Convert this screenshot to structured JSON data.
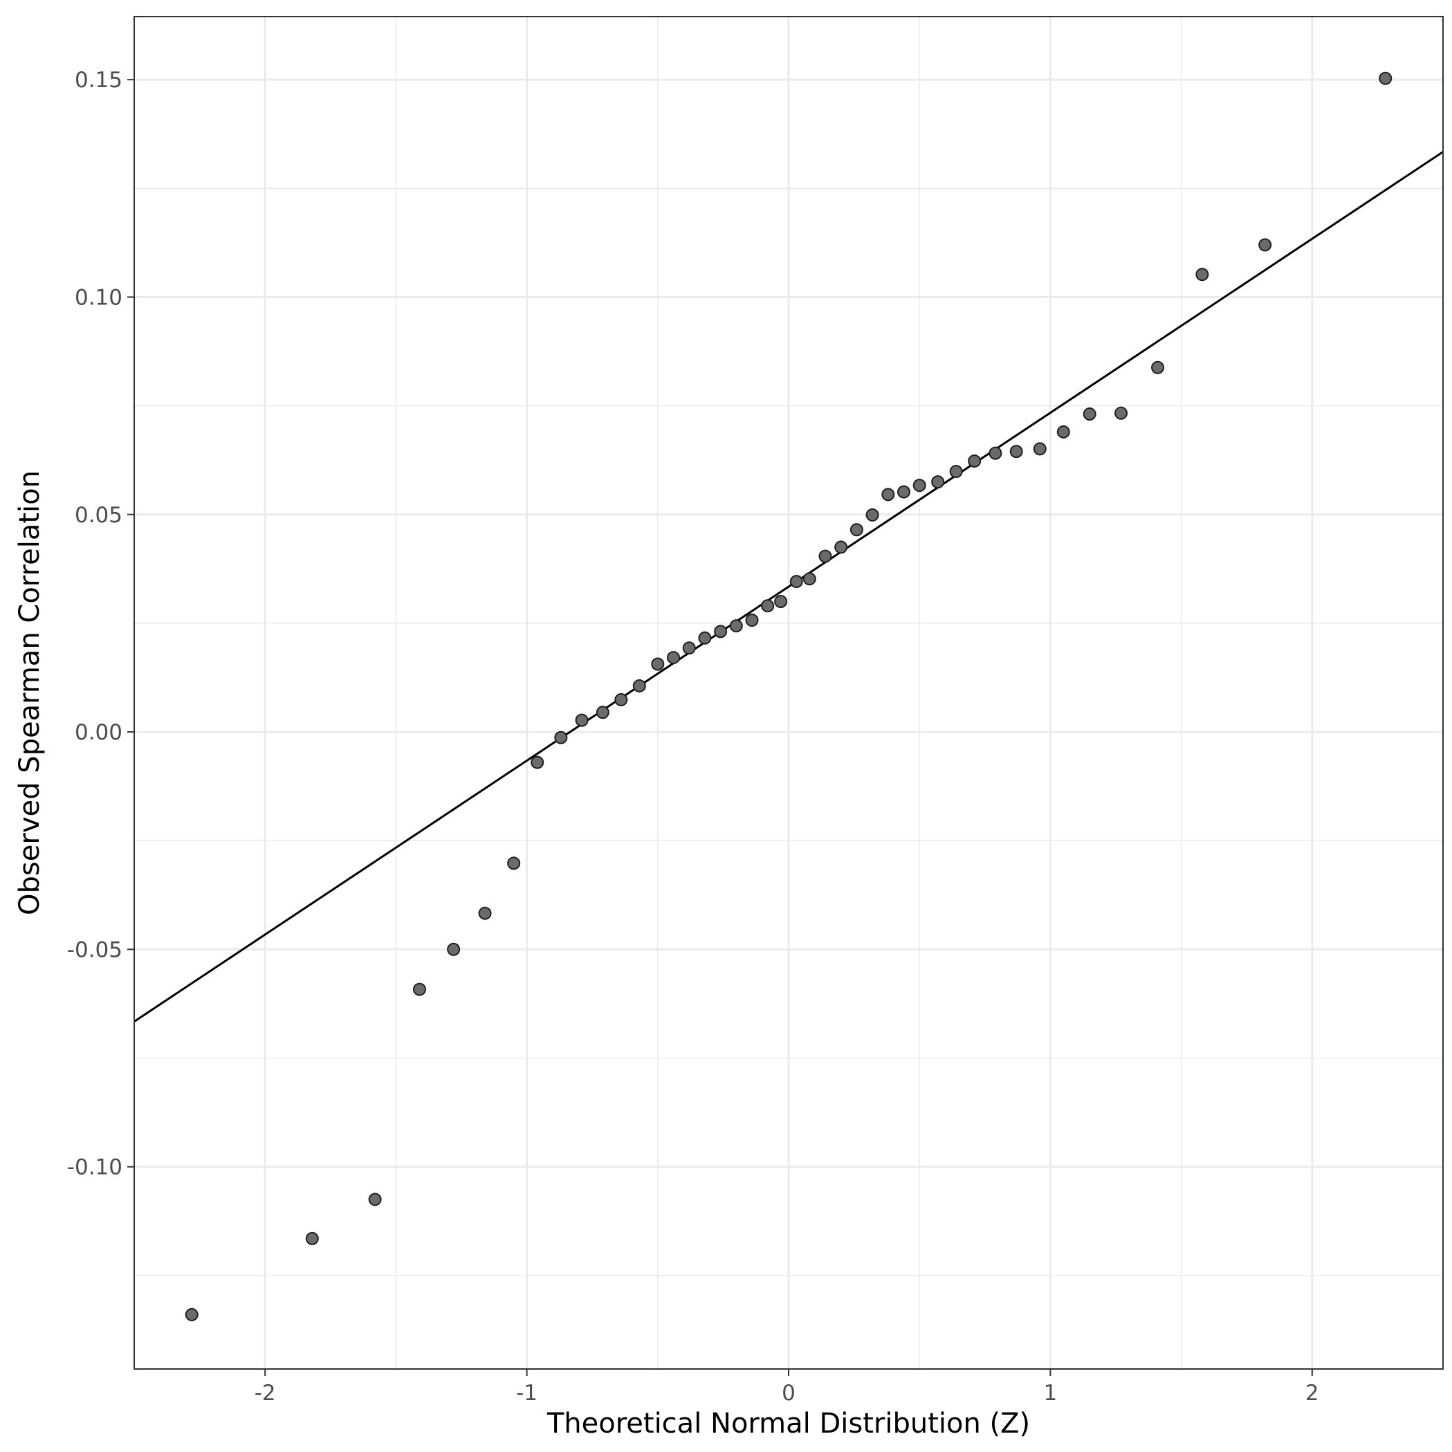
{
  "chart_data": {
    "type": "scatter",
    "title": "",
    "xlabel": "Theoretical Normal Distribution (Z)",
    "ylabel": "Observed Spearman Correlation",
    "xlim": [
      -2.5,
      2.5
    ],
    "ylim": [
      -0.1465,
      0.1645
    ],
    "x_ticks": [
      -2,
      -1,
      0,
      1,
      2
    ],
    "x_tick_labels": [
      "-2",
      "-1",
      "0",
      "1",
      "2"
    ],
    "y_ticks": [
      -0.1,
      -0.05,
      0.0,
      0.05,
      0.1,
      0.15
    ],
    "y_tick_labels": [
      "-0.10",
      "-0.05",
      "0.00",
      "0.05",
      "0.10",
      "0.15"
    ],
    "grid": true,
    "reference_line": {
      "intercept": 0.0334,
      "slope": 0.04
    },
    "colors": {
      "point_fill": "#6b6b6b",
      "point_stroke": "#1f1f1f",
      "line": "#000000",
      "grid": "#ebebeb",
      "panel_border": "#333333"
    },
    "points": [
      {
        "x": -2.28,
        "y": -0.134
      },
      {
        "x": -1.82,
        "y": -0.1165
      },
      {
        "x": -1.58,
        "y": -0.1075
      },
      {
        "x": -1.41,
        "y": -0.0592
      },
      {
        "x": -1.28,
        "y": -0.05
      },
      {
        "x": -1.16,
        "y": -0.0417
      },
      {
        "x": -1.05,
        "y": -0.0302
      },
      {
        "x": -0.96,
        "y": -0.007
      },
      {
        "x": -0.87,
        "y": -0.0013
      },
      {
        "x": -0.79,
        "y": 0.0027
      },
      {
        "x": -0.71,
        "y": 0.0045
      },
      {
        "x": -0.64,
        "y": 0.0074
      },
      {
        "x": -0.57,
        "y": 0.0106
      },
      {
        "x": -0.5,
        "y": 0.0156
      },
      {
        "x": -0.44,
        "y": 0.0171
      },
      {
        "x": -0.38,
        "y": 0.0193
      },
      {
        "x": -0.32,
        "y": 0.0216
      },
      {
        "x": -0.26,
        "y": 0.0231
      },
      {
        "x": -0.2,
        "y": 0.0244
      },
      {
        "x": -0.14,
        "y": 0.0257
      },
      {
        "x": -0.08,
        "y": 0.029
      },
      {
        "x": -0.03,
        "y": 0.03
      },
      {
        "x": 0.03,
        "y": 0.0346
      },
      {
        "x": 0.08,
        "y": 0.0352
      },
      {
        "x": 0.14,
        "y": 0.0404
      },
      {
        "x": 0.2,
        "y": 0.0425
      },
      {
        "x": 0.26,
        "y": 0.0465
      },
      {
        "x": 0.32,
        "y": 0.0499
      },
      {
        "x": 0.38,
        "y": 0.0546
      },
      {
        "x": 0.44,
        "y": 0.0552
      },
      {
        "x": 0.5,
        "y": 0.0567
      },
      {
        "x": 0.57,
        "y": 0.0575
      },
      {
        "x": 0.64,
        "y": 0.0599
      },
      {
        "x": 0.71,
        "y": 0.0623
      },
      {
        "x": 0.79,
        "y": 0.0641
      },
      {
        "x": 0.87,
        "y": 0.0645
      },
      {
        "x": 0.96,
        "y": 0.0651
      },
      {
        "x": 1.05,
        "y": 0.069
      },
      {
        "x": 1.15,
        "y": 0.0731
      },
      {
        "x": 1.27,
        "y": 0.0733
      },
      {
        "x": 1.41,
        "y": 0.0838
      },
      {
        "x": 1.58,
        "y": 0.1052
      },
      {
        "x": 1.82,
        "y": 0.112
      },
      {
        "x": 2.28,
        "y": 0.1503
      }
    ]
  }
}
